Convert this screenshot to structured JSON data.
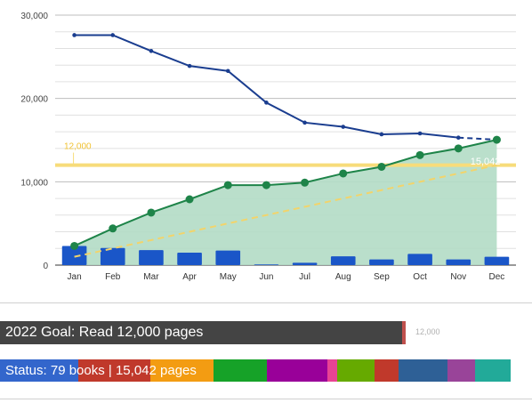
{
  "chart_data": {
    "type": "line",
    "categories": [
      "Jan",
      "Feb",
      "Mar",
      "Apr",
      "May",
      "Jun",
      "Jul",
      "Aug",
      "Sep",
      "Oct",
      "Nov",
      "Dec"
    ],
    "yticks": [
      "0",
      "10,000",
      "20,000",
      "30,000"
    ],
    "ylim": [
      0,
      30000
    ],
    "grid": true,
    "series": [
      {
        "kind": "line",
        "color": "#1a3d8f",
        "values": [
          27600,
          27600,
          25700,
          23900,
          23300,
          19500,
          17100,
          16600,
          15700,
          15800,
          15300,
          15050
        ]
      },
      {
        "kind": "area-line",
        "color": "#1e8449",
        "fill": "#b2dcc5",
        "values": [
          2300,
          4400,
          6300,
          7900,
          9600,
          9600,
          9900,
          11000,
          11800,
          13200,
          14000,
          15042
        ]
      },
      {
        "kind": "bar",
        "color": "#1a56c8",
        "values": [
          2300,
          2050,
          1800,
          1500,
          1750,
          80,
          280,
          1050,
          680,
          1350,
          680,
          1000
        ]
      },
      {
        "kind": "trend",
        "color": "#f2d46b",
        "from": [
          1000,
          "Jan"
        ],
        "to": [
          12000,
          "Dec"
        ]
      }
    ],
    "goal_line": {
      "value": 12000,
      "label": "12,000",
      "color": "#f7dc7a"
    },
    "end_label": "15,042"
  },
  "goal": {
    "label": "2022 Goal: Read 12,000 pages",
    "target_label": "12,000",
    "progress": 0.76
  },
  "status": {
    "label": "Status: 79 books | 15,042 pages",
    "colors": [
      "#3366cc",
      "#c0392b",
      "#f39c12",
      "#16a228",
      "#990099",
      "#e84393",
      "#66aa00",
      "#c0392b",
      "#2e6096",
      "#994499",
      "#22aa99"
    ],
    "weights": [
      88,
      80,
      71,
      59,
      68,
      11,
      42,
      27,
      54,
      31,
      40
    ]
  }
}
